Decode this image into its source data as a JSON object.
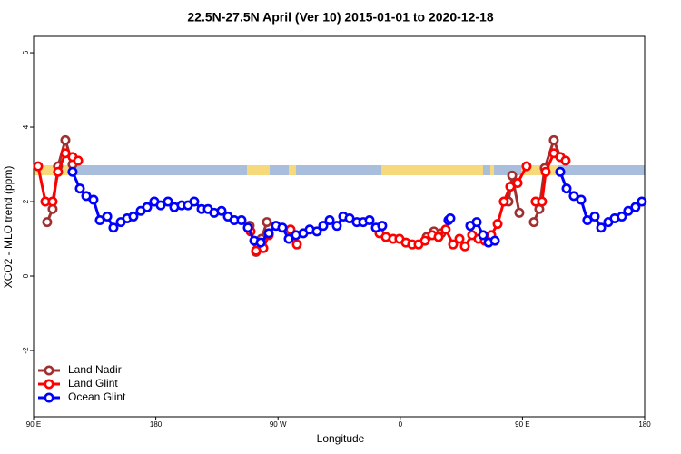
{
  "chart_data": {
    "type": "line",
    "title": "22.5N-27.5N April (Ver 10)   2015-01-01 to 2020-12-18",
    "x_label": "Longitude",
    "y_label": "XCO2 - MLO trend (ppm)",
    "xlim": [
      90,
      540
    ],
    "xticks": [
      {
        "value": 90,
        "label": "90 E"
      },
      {
        "value": 180,
        "label": "180"
      },
      {
        "value": 270,
        "label": "90 W"
      },
      {
        "value": 360,
        "label": "0"
      },
      {
        "value": 450,
        "label": "90 E"
      },
      {
        "value": 540,
        "label": "180"
      }
    ],
    "ylim": [
      -3.78,
      6.44
    ],
    "yticks": [
      -2,
      0,
      2,
      4,
      6
    ],
    "legend": "bottom-left",
    "series": [
      {
        "name": "Land Nadir",
        "color": "#a03030",
        "x": [
          100,
          104,
          108,
          113.4,
          118.7,
          null,
          249.1,
          253.8,
          257.8,
          261.8,
          null,
          379.5,
          384.8,
          390.2,
          null,
          439.7,
          442.4,
          447.7,
          null,
          458.4,
          462.4,
          466.4,
          473.1,
          477.8
        ],
        "values": [
          1.45,
          1.8,
          2.95,
          3.65,
          3.0,
          null,
          1.35,
          0.65,
          1.0,
          1.45,
          null,
          1.05,
          1.2,
          1.15,
          null,
          2.0,
          2.7,
          1.7,
          null,
          1.45,
          1.8,
          2.9,
          3.65,
          3.2
        ]
      },
      {
        "name": "Land Glint",
        "color": "#ff0000",
        "x": [
          93.3,
          98.7,
          104,
          108,
          113.4,
          118.7,
          122.8,
          null,
          249.8,
          253.8,
          259.2,
          263.2,
          null,
          279.2,
          283.9,
          null,
          344.7,
          349.4,
          354.8,
          359.4,
          364.1,
          368.8,
          373.5,
          378.2,
          383.5,
          388.2,
          393.5,
          398.9,
          403.6,
          407.6,
          412.9,
          417.6,
          422.3,
          427,
          431.7,
          436.3,
          441,
          446.4,
          453,
          null,
          459.7,
          464.4,
          467.1,
          473.1,
          477.8,
          481.8
        ],
        "values": [
          2.95,
          2.0,
          2.0,
          2.8,
          3.3,
          3.2,
          3.1,
          null,
          1.2,
          0.68,
          0.75,
          1.1,
          null,
          1.25,
          0.85,
          null,
          1.15,
          1.05,
          1.0,
          1.0,
          0.9,
          0.85,
          0.85,
          0.95,
          1.1,
          1.05,
          1.25,
          0.85,
          1.0,
          0.8,
          1.1,
          1.0,
          0.95,
          1.1,
          1.4,
          2.0,
          2.4,
          2.5,
          2.95,
          null,
          2.0,
          2.0,
          2.8,
          3.3,
          3.2,
          3.1
        ]
      },
      {
        "name": "Ocean Glint",
        "color": "#0000ff",
        "x": [
          118.7,
          124.1,
          128.8,
          134.1,
          138.8,
          144.2,
          148.8,
          154.2,
          158.9,
          163.5,
          168.9,
          173.6,
          178.9,
          183.6,
          189,
          193.6,
          199,
          203.7,
          208.3,
          213.7,
          218.4,
          223,
          228.4,
          233.1,
          237.8,
          243.1,
          247.8,
          252.5,
          257.2,
          263.2,
          268.5,
          273.2,
          277.9,
          283.2,
          288.6,
          293.3,
          298.6,
          303.3,
          308,
          313.3,
          318,
          322.7,
          328,
          332.7,
          337.4,
          342.1,
          346.7,
          null,
          395.5,
          396.9,
          null,
          411.6,
          416.3,
          421,
          425,
          429.7,
          null,
          477.8,
          482.5,
          487.8,
          493.2,
          497.8,
          503.2,
          507.9,
          513.2,
          517.9,
          523.2,
          527.9,
          533.2,
          537.9
        ],
        "values": [
          2.8,
          2.35,
          2.15,
          2.05,
          1.5,
          1.6,
          1.3,
          1.45,
          1.55,
          1.6,
          1.75,
          1.85,
          2.0,
          1.9,
          2.0,
          1.85,
          1.9,
          1.9,
          2.0,
          1.8,
          1.8,
          1.7,
          1.75,
          1.6,
          1.5,
          1.5,
          1.3,
          0.95,
          0.9,
          1.15,
          1.35,
          1.3,
          1.0,
          1.1,
          1.15,
          1.25,
          1.2,
          1.35,
          1.5,
          1.35,
          1.6,
          1.55,
          1.45,
          1.45,
          1.5,
          1.3,
          1.35,
          null,
          1.5,
          1.55,
          null,
          1.35,
          1.45,
          1.1,
          0.9,
          0.95,
          null,
          2.8,
          2.35,
          2.15,
          2.05,
          1.5,
          1.6,
          1.3,
          1.45,
          1.55,
          1.6,
          1.75,
          1.85,
          2.0
        ]
      }
    ]
  }
}
